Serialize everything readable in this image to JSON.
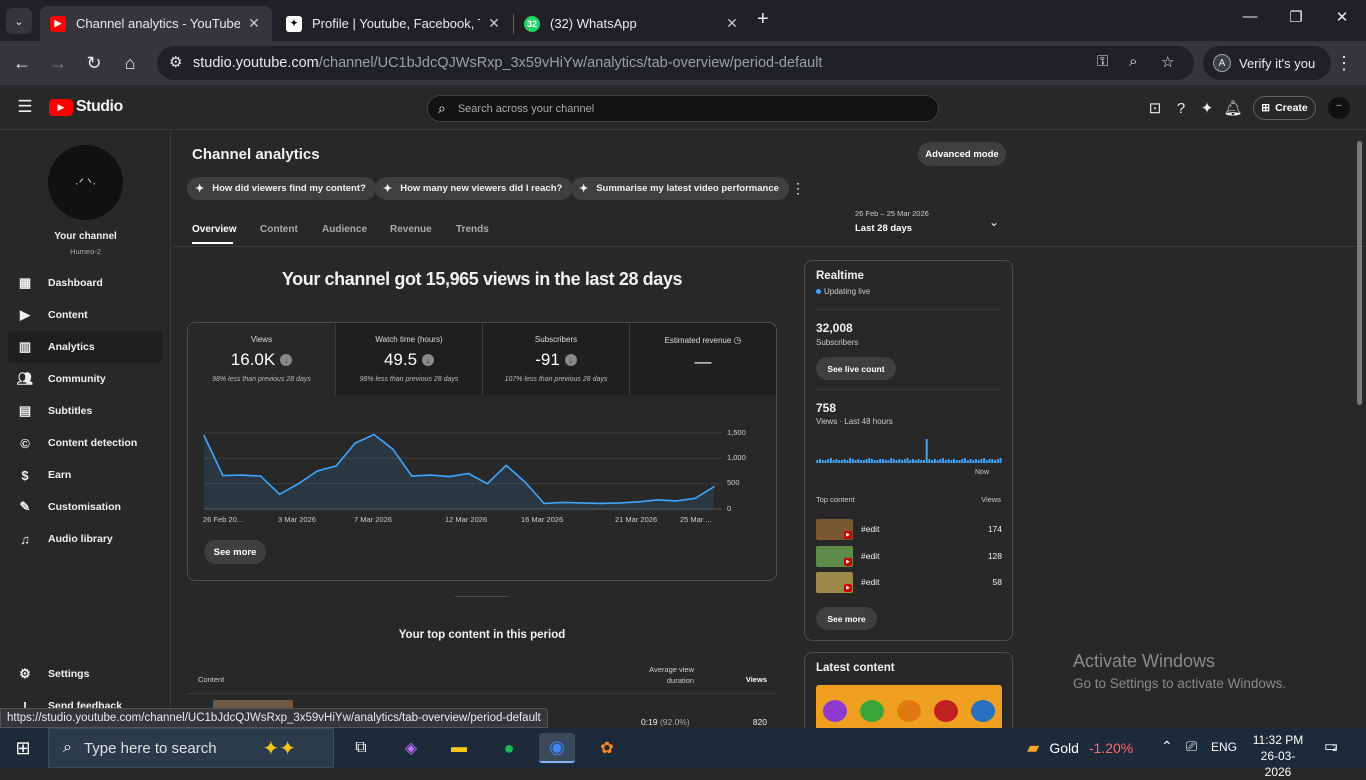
{
  "browser": {
    "tabs": [
      {
        "title": "Channel analytics - YouTube Stu",
        "active": true
      },
      {
        "title": "Profile | Youtube, Facebook, Twi",
        "active": false
      },
      {
        "title": "(32) WhatsApp",
        "active": false,
        "badge": "32"
      }
    ],
    "url_host": "studio.youtube.com",
    "url_path": "/channel/UC1bJdcQJWsRxp_3x59vHiYw/analytics/tab-overview/period-default",
    "verify_label": "Verify it's you",
    "verify_avatar": "A",
    "status_url": "https://studio.youtube.com/channel/UC1bJdcQJWsRxp_3x59vHiYw/analytics/tab-overview/period-default"
  },
  "header": {
    "logo_text": "Studio",
    "search_placeholder": "Search across your channel",
    "create_label": "Create"
  },
  "sidebar": {
    "channel_label": "Your channel",
    "channel_name": "Humeo-2",
    "items": [
      {
        "label": "Dashboard",
        "icon": "dashboard-icon"
      },
      {
        "label": "Content",
        "icon": "content-icon"
      },
      {
        "label": "Analytics",
        "icon": "analytics-icon",
        "active": true
      },
      {
        "label": "Community",
        "icon": "community-icon"
      },
      {
        "label": "Subtitles",
        "icon": "subtitles-icon"
      },
      {
        "label": "Content detection",
        "icon": "copyright-icon"
      },
      {
        "label": "Earn",
        "icon": "dollar-icon"
      },
      {
        "label": "Customisation",
        "icon": "wand-icon"
      },
      {
        "label": "Audio library",
        "icon": "audio-library-icon"
      }
    ],
    "settings_label": "Settings",
    "feedback_label": "Send feedback"
  },
  "main": {
    "title": "Channel analytics",
    "advanced_label": "Advanced mode",
    "chips": [
      "How did viewers find my content?",
      "How many new viewers did I reach?",
      "Summarise my latest video performance"
    ],
    "tabs": [
      "Overview",
      "Content",
      "Audience",
      "Revenue",
      "Trends"
    ],
    "date_range": "26 Feb – 25 Mar 2026",
    "period_label": "Last 28 days",
    "headline": "Your channel got 15,965 views in the last 28 days",
    "stats": [
      {
        "label": "Views",
        "value": "16.0K",
        "compare": "98% less than previous 28 days"
      },
      {
        "label": "Watch time (hours)",
        "value": "49.5",
        "compare": "98% less than previous 28 days"
      },
      {
        "label": "Subscribers",
        "value": "-91",
        "compare": "107% less than previous 28 days"
      },
      {
        "label": "Estimated revenue",
        "value": "—",
        "compare": ""
      }
    ],
    "see_more": "See more",
    "top_content_title": "Your top content in this period",
    "table_headers": {
      "content": "Content",
      "avg_duration": "Average view duration",
      "views": "Views"
    },
    "top_row": {
      "duration": "0:19",
      "percent": "(92.0%)",
      "views": "820"
    }
  },
  "chart_data": {
    "type": "area",
    "x_tick_labels": [
      "26 Feb 20...",
      "3 Mar 2026",
      "7 Mar 2026",
      "12 Mar 2026",
      "16 Mar 2026",
      "21 Mar 2026",
      "25 Mar ..."
    ],
    "y_tick_labels": [
      "1,500",
      "1,000",
      "500",
      "0"
    ],
    "ylim": [
      0,
      1500
    ],
    "series": [
      {
        "values": [
          1450,
          660,
          670,
          650,
          290,
          500,
          750,
          850,
          1300,
          1470,
          1180,
          650,
          670,
          640,
          700,
          500,
          860,
          530,
          110,
          130,
          120,
          110,
          120,
          140,
          180,
          160,
          210,
          440
        ]
      }
    ]
  },
  "realtime": {
    "title": "Realtime",
    "live_label": "Updating live",
    "subscribers": "32,008",
    "subscribers_label": "Subscribers",
    "live_count_button": "See live count",
    "views": "758",
    "views_label": "Views · Last 48 hours",
    "now_label": "Now",
    "bars": [
      3,
      4,
      3,
      3,
      4,
      5,
      3,
      4,
      3,
      3,
      4,
      3,
      5,
      4,
      3,
      4,
      3,
      3,
      4,
      5,
      4,
      3,
      3,
      4,
      4,
      3,
      3,
      5,
      4,
      3,
      4,
      3,
      4,
      5,
      3,
      4,
      3,
      4,
      3,
      3,
      24,
      4,
      3,
      4,
      3,
      4,
      5,
      3,
      4,
      3,
      4,
      3,
      3,
      4,
      5,
      3,
      4,
      3,
      4,
      3,
      4,
      5,
      3,
      4,
      4,
      3,
      4,
      5
    ],
    "top_content_label": "Top content",
    "views_col_label": "Views",
    "items": [
      {
        "title": "#edit",
        "views": "174"
      },
      {
        "title": "#edit",
        "views": "128"
      },
      {
        "title": "#edit",
        "views": "58"
      }
    ],
    "see_more": "See more"
  },
  "latest": {
    "title": "Latest content"
  },
  "watermark": {
    "line1": "Activate Windows",
    "line2": "Go to Settings to activate Windows."
  },
  "taskbar": {
    "search_placeholder": "Type here to search",
    "weather_label": "Gold",
    "weather_change": "-1.20%",
    "lang": "ENG",
    "time": "11:32 PM",
    "date": "26-03-2026",
    "notif_count": "2"
  },
  "colors": {
    "accent_line": "#3ea6ff",
    "youtube_red": "#ff0000",
    "negative": "#ff6b6b"
  }
}
